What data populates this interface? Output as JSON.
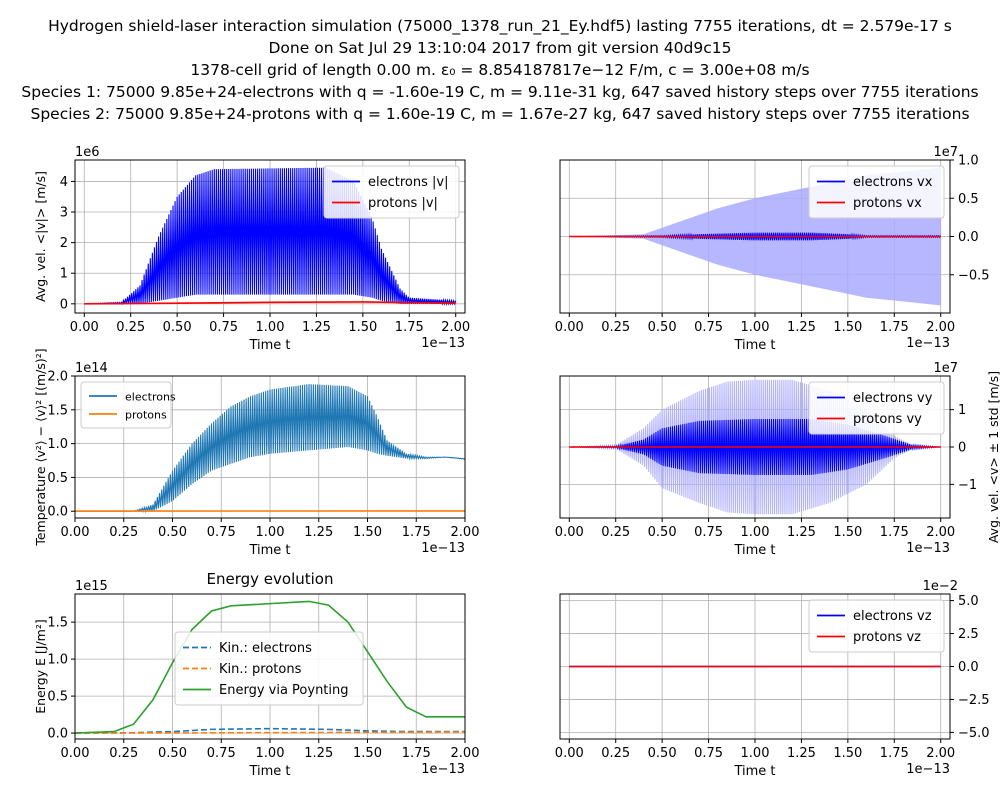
{
  "header": {
    "line1": "Hydrogen shield-laser interaction simulation (75000_1378_run_21_Ey.hdf5) lasting 7755 iterations, dt = 2.579e-17 s",
    "line2": "Done on Sat Jul 29 13:10:04 2017 from git version 40d9c15",
    "line3": "1378-cell grid of length 0.00 m. ε₀ = 8.854187817e−12 F/m, c = 3.00e+08 m/s",
    "line4": "Species 1: 75000 9.85e+24-electrons with q = -1.60e-19 C, m = 9.11e-31 kg, 647 saved history steps over 7755 iterations",
    "line5": "Species 2: 75000 9.85e+24-protons with q = 1.60e-19 C, m = 1.67e-27 kg, 647 saved history steps over 7755 iterations"
  },
  "colors": {
    "electrons": "#0000ff",
    "protons": "#ff0000",
    "tab_blue": "#1f77b4",
    "tab_orange": "#ff7f0e",
    "tab_green": "#2ca02c",
    "band": "#aaaaff"
  },
  "chart_data": [
    {
      "id": "speed",
      "type": "line",
      "ylabel": "Avg. vel. <|v|> [m/s]",
      "xlabel": "Time t",
      "x_offset_text": "1e−13",
      "y_offset_text": "1e6",
      "xlim": [
        -0.05,
        2.05
      ],
      "ylim": [
        -0.3,
        4.7
      ],
      "xticks": [
        "0.00",
        "0.25",
        "0.50",
        "0.75",
        "1.00",
        "1.25",
        "1.50",
        "1.75",
        "2.00"
      ],
      "yticks": [
        "0",
        "1",
        "2",
        "3",
        "4"
      ],
      "legend": {
        "position": "top-right",
        "entries": [
          "electrons |v|",
          "protons |v|"
        ]
      },
      "series": [
        {
          "name": "electrons |v|",
          "kind": "oscillating",
          "envelope_x": [
            0,
            0.2,
            0.3,
            0.4,
            0.5,
            0.6,
            0.7,
            1.3,
            1.45,
            1.55,
            1.6,
            1.7,
            1.75,
            2.0
          ],
          "envelope_hi": [
            0,
            0.05,
            0.6,
            2.2,
            3.5,
            4.2,
            4.4,
            4.45,
            4.0,
            2.8,
            1.8,
            0.5,
            0.2,
            0.1
          ],
          "envelope_lo": [
            0,
            0,
            0,
            0.1,
            0.2,
            0.3,
            0.3,
            0.3,
            0.3,
            0.2,
            0.1,
            0,
            0,
            0
          ]
        },
        {
          "name": "protons |v|",
          "kind": "line",
          "x": [
            0,
            0.5,
            1.0,
            1.5,
            1.75,
            2.0
          ],
          "y": [
            0,
            0.02,
            0.05,
            0.06,
            0.04,
            0.02
          ]
        }
      ],
      "grid": true
    },
    {
      "id": "vx",
      "type": "line",
      "xlabel": "Time t",
      "x_offset_text": "1e−13",
      "y_offset_text": "1e7",
      "xlim": [
        -0.05,
        2.05
      ],
      "ylim": [
        -1.0,
        1.0
      ],
      "xticks": [
        "0.00",
        "0.25",
        "0.50",
        "0.75",
        "1.00",
        "1.25",
        "1.50",
        "1.75",
        "2.00"
      ],
      "yticks": [
        "−0.5",
        "0.0",
        "0.5",
        "1.0"
      ],
      "ytick_values": [
        -0.5,
        0.0,
        0.5,
        1.0
      ],
      "y_axis_side": "right",
      "legend": {
        "position": "top-right",
        "entries": [
          "electrons vx",
          "protons vx"
        ]
      },
      "series": [
        {
          "name": "electrons vx",
          "kind": "band",
          "x": [
            0,
            0.4,
            0.6,
            0.8,
            1.0,
            1.2,
            1.4,
            1.6,
            1.8,
            2.0
          ],
          "upper": [
            0,
            0.03,
            0.2,
            0.37,
            0.5,
            0.6,
            0.7,
            0.8,
            0.85,
            0.9
          ],
          "lower": [
            0,
            -0.03,
            -0.2,
            -0.37,
            -0.5,
            -0.6,
            -0.7,
            -0.8,
            -0.85,
            -0.9
          ]
        },
        {
          "name": "electrons vx mean",
          "kind": "oscillating",
          "envelope_x": [
            0,
            0.5,
            0.7,
            1.0,
            1.3,
            1.5,
            1.6,
            2.0
          ],
          "envelope_hi": [
            0,
            0.01,
            0.03,
            0.05,
            0.05,
            0.03,
            0.01,
            0.01
          ],
          "envelope_lo": [
            0,
            -0.01,
            -0.03,
            -0.05,
            -0.05,
            -0.03,
            -0.01,
            -0.01
          ]
        },
        {
          "name": "protons vx",
          "kind": "line",
          "x": [
            0,
            2.0
          ],
          "y": [
            0,
            0
          ]
        }
      ],
      "grid": true
    },
    {
      "id": "temperature",
      "type": "line",
      "ylabel": "Temperature ⟨v²⟩ − ⟨v⟩² [(m/s)²]",
      "xlabel": "Time t",
      "x_offset_text": "1e−13",
      "y_offset_text": "1e14",
      "xlim": [
        0,
        2.0
      ],
      "ylim": [
        -0.1,
        2.0
      ],
      "xticks": [
        "0.00",
        "0.25",
        "0.50",
        "0.75",
        "1.00",
        "1.25",
        "1.50",
        "1.75",
        "2.00"
      ],
      "yticks": [
        "0.0",
        "0.5",
        "1.0",
        "1.5",
        "2.0"
      ],
      "legend": {
        "position": "top-left",
        "entries": [
          "electrons",
          "protons"
        ]
      },
      "series": [
        {
          "name": "electrons",
          "kind": "oscillating",
          "envelope_x": [
            0,
            0.3,
            0.4,
            0.5,
            0.6,
            0.7,
            0.8,
            0.9,
            1.0,
            1.2,
            1.4,
            1.5,
            1.55,
            1.6,
            1.7,
            1.8,
            1.9,
            2.0
          ],
          "envelope_hi": [
            0,
            0,
            0.1,
            0.6,
            1.0,
            1.3,
            1.55,
            1.7,
            1.8,
            1.88,
            1.85,
            1.7,
            1.4,
            1.05,
            0.85,
            0.8,
            0.8,
            0.78
          ],
          "envelope_lo": [
            0,
            0,
            0,
            0.15,
            0.4,
            0.6,
            0.7,
            0.8,
            0.85,
            0.9,
            0.95,
            0.9,
            0.85,
            0.82,
            0.78,
            0.78,
            0.8,
            0.77
          ]
        },
        {
          "name": "protons",
          "kind": "line",
          "x": [
            0,
            2.0
          ],
          "y": [
            0.003,
            0.004
          ]
        }
      ],
      "grid": true
    },
    {
      "id": "vy",
      "type": "line",
      "ylabel": "Avg. vel. <v> ± 1 std [m/s]",
      "xlabel": "Time t",
      "x_offset_text": "1e−13",
      "y_offset_text": "1e7",
      "xlim": [
        -0.05,
        2.05
      ],
      "ylim": [
        -1.9,
        1.9
      ],
      "xticks": [
        "0.00",
        "0.25",
        "0.50",
        "0.75",
        "1.00",
        "1.25",
        "1.50",
        "1.75",
        "2.00"
      ],
      "yticks": [
        "−1",
        "0",
        "1"
      ],
      "ytick_values": [
        -1,
        0,
        1
      ],
      "y_axis_side": "right",
      "legend": {
        "position": "top-right",
        "entries": [
          "electrons vy",
          "protons vy"
        ]
      },
      "series": [
        {
          "name": "electrons vy band",
          "kind": "oscillating",
          "color_key": "band",
          "envelope_x": [
            0,
            0.25,
            0.4,
            0.5,
            0.7,
            0.85,
            1.0,
            1.2,
            1.4,
            1.6,
            1.75,
            1.85,
            2.0
          ],
          "envelope_hi": [
            0,
            0.05,
            0.5,
            1.0,
            1.5,
            1.75,
            1.8,
            1.8,
            1.5,
            1.0,
            0.3,
            0.05,
            0
          ],
          "envelope_lo": [
            0,
            -0.05,
            -0.5,
            -1.1,
            -1.5,
            -1.75,
            -1.8,
            -1.8,
            -1.5,
            -1.0,
            -0.3,
            -0.05,
            0
          ]
        },
        {
          "name": "electrons vy",
          "kind": "oscillating",
          "envelope_x": [
            0,
            0.25,
            0.4,
            0.5,
            0.7,
            1.0,
            1.3,
            1.5,
            1.7,
            1.85,
            2.0
          ],
          "envelope_hi": [
            0,
            0.02,
            0.2,
            0.5,
            0.7,
            0.75,
            0.75,
            0.6,
            0.3,
            0.05,
            0
          ],
          "envelope_lo": [
            0,
            -0.02,
            -0.2,
            -0.5,
            -0.7,
            -0.75,
            -0.75,
            -0.6,
            -0.3,
            -0.05,
            0
          ]
        },
        {
          "name": "protons vy",
          "kind": "line",
          "x": [
            0,
            2.0
          ],
          "y": [
            0,
            0
          ]
        }
      ],
      "grid": true
    },
    {
      "id": "energy",
      "type": "line",
      "title": "Energy evolution",
      "ylabel": "Energy E [J/m²]",
      "xlabel": "Time t",
      "x_offset_text": "1e−13",
      "y_offset_text": "1e15",
      "xlim": [
        0,
        2.0
      ],
      "ylim": [
        -0.08,
        1.88
      ],
      "xticks": [
        "0.00",
        "0.25",
        "0.50",
        "0.75",
        "1.00",
        "1.25",
        "1.50",
        "1.75",
        "2.00"
      ],
      "yticks": [
        "0.0",
        "0.5",
        "1.0",
        "1.5"
      ],
      "legend": {
        "position": "center",
        "entries": [
          "Kin.: electrons",
          "Kin.: protons",
          "Energy via Poynting"
        ]
      },
      "series": [
        {
          "name": "Kin.: electrons",
          "kind": "dashed",
          "x": [
            0,
            0.3,
            0.5,
            0.7,
            1.0,
            1.3,
            1.5,
            1.7,
            2.0
          ],
          "y": [
            0,
            0.005,
            0.02,
            0.05,
            0.06,
            0.05,
            0.03,
            0.02,
            0.02
          ]
        },
        {
          "name": "Kin.: protons",
          "kind": "dashed",
          "x": [
            0,
            0.5,
            1.0,
            1.5,
            2.0
          ],
          "y": [
            0,
            0.002,
            0.005,
            0.01,
            0.015
          ]
        },
        {
          "name": "Energy via Poynting",
          "kind": "line",
          "x": [
            0,
            0.2,
            0.3,
            0.4,
            0.5,
            0.6,
            0.7,
            0.8,
            1.0,
            1.2,
            1.3,
            1.4,
            1.5,
            1.6,
            1.7,
            1.8,
            2.0
          ],
          "y": [
            0,
            0.02,
            0.12,
            0.45,
            0.95,
            1.4,
            1.65,
            1.72,
            1.75,
            1.78,
            1.73,
            1.5,
            1.1,
            0.7,
            0.35,
            0.22,
            0.22
          ]
        }
      ],
      "grid": true
    },
    {
      "id": "vz",
      "type": "line",
      "xlabel": "Time t",
      "x_offset_text": "1e−13",
      "y_offset_text": "1e−2",
      "xlim": [
        -0.05,
        2.05
      ],
      "ylim": [
        -5.5,
        5.5
      ],
      "xticks": [
        "0.00",
        "0.25",
        "0.50",
        "0.75",
        "1.00",
        "1.25",
        "1.50",
        "1.75",
        "2.00"
      ],
      "yticks": [
        "−5.0",
        "−2.5",
        "0.0",
        "2.5",
        "5.0"
      ],
      "ytick_values": [
        -5,
        -2.5,
        0,
        2.5,
        5
      ],
      "y_axis_side": "right",
      "legend": {
        "position": "top-right",
        "entries": [
          "electrons vz",
          "protons vz"
        ]
      },
      "series": [
        {
          "name": "electrons vz",
          "kind": "line",
          "x": [
            0,
            2.0
          ],
          "y": [
            0,
            0
          ]
        },
        {
          "name": "protons vz",
          "kind": "line",
          "x": [
            0,
            2.0
          ],
          "y": [
            0,
            0
          ]
        }
      ],
      "grid": true
    }
  ]
}
